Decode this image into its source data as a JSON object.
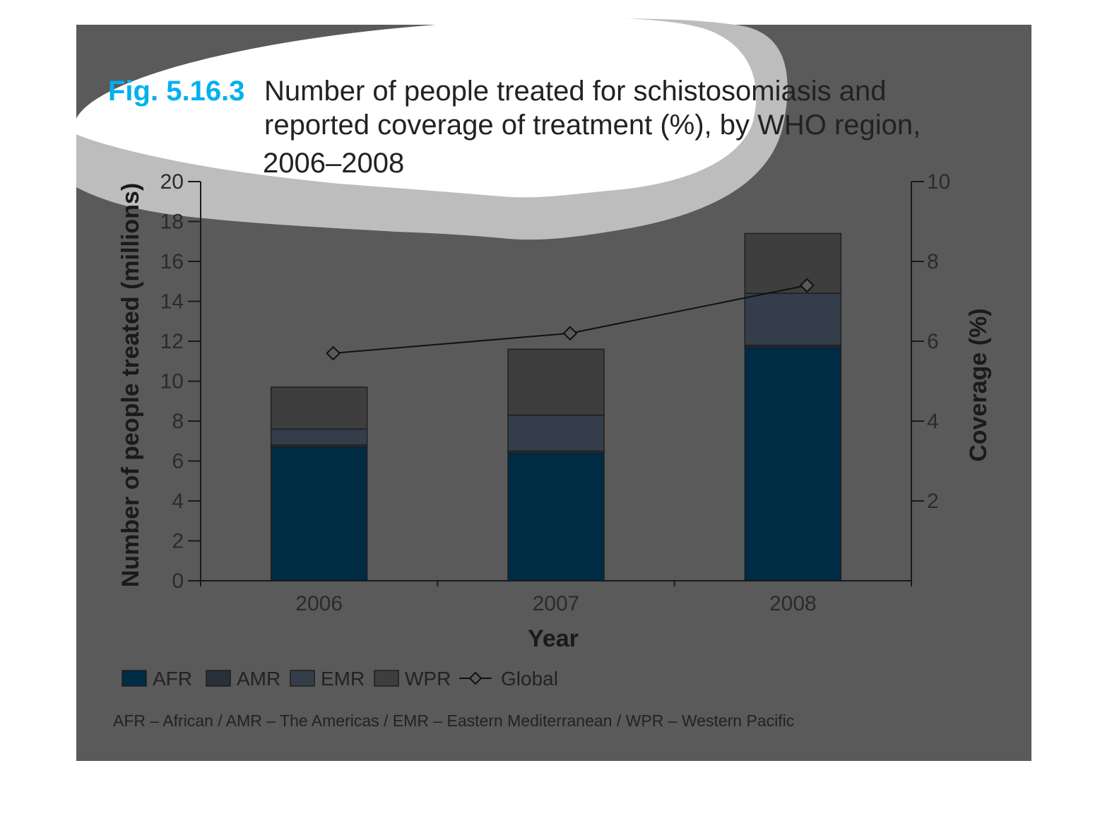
{
  "figure": {
    "label": "Fig. 5.16.3",
    "title_lines": [
      "Number of people treated for schistosomiasis and",
      "reported coverage of treatment (%), by WHO region,",
      "2006–2008"
    ],
    "footnote": "AFR – African / AMR – The Americas / EMR – Eastern Mediterranean / WPR – Western Pacific"
  },
  "colors": {
    "panel": "#5a5a5a",
    "label_blue": "#00b0f0",
    "cloud_gray": "#bdbdbd",
    "cloud_white": "#ffffff",
    "AFR": "#002b45",
    "AMR": "#27303b",
    "EMR": "#343e4a",
    "WPR": "#3e3e3e",
    "line": "#111111",
    "axis": "#1a1a1a"
  },
  "legend": [
    {
      "key": "AFR",
      "label": "AFR",
      "kind": "box"
    },
    {
      "key": "AMR",
      "label": "AMR",
      "kind": "box"
    },
    {
      "key": "EMR",
      "label": "EMR",
      "kind": "box"
    },
    {
      "key": "WPR",
      "label": "WPR",
      "kind": "box"
    },
    {
      "key": "Global",
      "label": "Global",
      "kind": "line-diamond"
    }
  ],
  "chart_data": {
    "type": "bar",
    "stacked": true,
    "categories": [
      "2006",
      "2007",
      "2008"
    ],
    "xlabel": "Year",
    "ylabel": "Number of people treated (millions)",
    "ylim": [
      0,
      20
    ],
    "yticks": [
      0,
      2,
      4,
      6,
      8,
      10,
      12,
      14,
      16,
      18,
      20
    ],
    "y2label": "Coverage (%)",
    "y2lim": [
      0,
      10
    ],
    "y2ticks": [
      2,
      4,
      6,
      8,
      10
    ],
    "series": [
      {
        "name": "AFR",
        "values": [
          6.7,
          6.4,
          11.7
        ]
      },
      {
        "name": "AMR",
        "values": [
          0.1,
          0.1,
          0.1
        ]
      },
      {
        "name": "EMR",
        "values": [
          0.8,
          1.8,
          2.6
        ]
      },
      {
        "name": "WPR",
        "values": [
          2.1,
          3.3,
          3.0
        ]
      }
    ],
    "line_series": {
      "name": "Global",
      "axis": "right",
      "values": [
        5.7,
        6.2,
        7.4
      ]
    },
    "legend_position": "bottom-left",
    "grid": false
  }
}
